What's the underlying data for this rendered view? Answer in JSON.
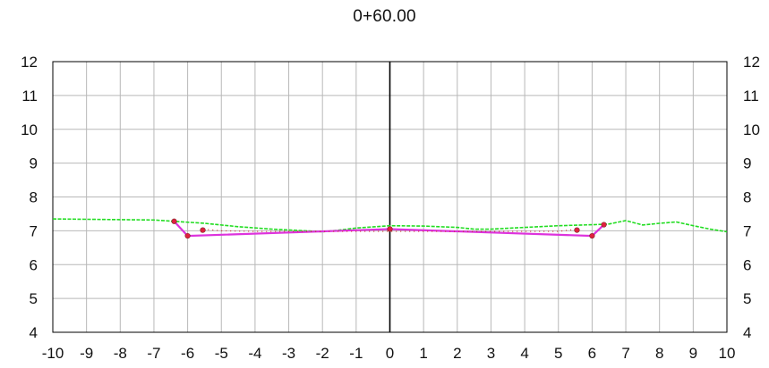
{
  "chart_data": {
    "type": "line",
    "title": "0+60.00",
    "xlabel": "",
    "ylabel": "",
    "xlim": [
      -10,
      10
    ],
    "ylim": [
      4,
      12
    ],
    "x_ticks": [
      -10,
      -9,
      -8,
      -7,
      -6,
      -5,
      -4,
      -3,
      -2,
      -1,
      0,
      1,
      2,
      3,
      4,
      5,
      6,
      7,
      8,
      9,
      10
    ],
    "y_ticks": [
      4,
      5,
      6,
      7,
      8,
      9,
      10,
      11,
      12
    ],
    "grid": true,
    "center_line_x": 0,
    "series": [
      {
        "style": "dashed",
        "color": "#22dd22",
        "points": [
          [
            -10,
            7.35
          ],
          [
            -9,
            7.34
          ],
          [
            -8,
            7.33
          ],
          [
            -7,
            7.32
          ],
          [
            -6.4,
            7.28
          ],
          [
            -5.5,
            7.22
          ],
          [
            -4.5,
            7.12
          ],
          [
            -3.5,
            7.05
          ],
          [
            -2.5,
            7.0
          ],
          [
            -2,
            6.97
          ],
          [
            -1.5,
            7.02
          ],
          [
            -1,
            7.08
          ],
          [
            0,
            7.15
          ],
          [
            1,
            7.14
          ],
          [
            2,
            7.1
          ],
          [
            2.5,
            7.05
          ],
          [
            3,
            7.05
          ],
          [
            4,
            7.1
          ],
          [
            5,
            7.15
          ],
          [
            6,
            7.18
          ],
          [
            6.5,
            7.2
          ],
          [
            7,
            7.3
          ],
          [
            7.5,
            7.17
          ],
          [
            8,
            7.22
          ],
          [
            8.5,
            7.26
          ],
          [
            9,
            7.15
          ],
          [
            9.5,
            7.05
          ],
          [
            10,
            6.97
          ]
        ]
      },
      {
        "style": "solid",
        "color": "#dd33dd",
        "points": [
          [
            -6.4,
            7.28
          ],
          [
            -6,
            6.85
          ],
          [
            0,
            7.05
          ],
          [
            6,
            6.85
          ],
          [
            6.35,
            7.18
          ]
        ]
      },
      {
        "style": "dotted",
        "color": "#cc2222",
        "points": [
          [
            -5.6,
            6.95
          ],
          [
            -5.55,
            7.05
          ],
          [
            -5.0,
            7.0
          ],
          [
            -4.0,
            6.98
          ],
          [
            -3.0,
            6.98
          ],
          [
            -2.0,
            6.98
          ],
          [
            2.0,
            6.98
          ],
          [
            3.0,
            6.98
          ],
          [
            4.0,
            6.98
          ],
          [
            5.0,
            6.98
          ],
          [
            5.55,
            7.05
          ],
          [
            5.6,
            6.95
          ]
        ]
      }
    ],
    "markers": [
      [
        -6.4,
        7.28
      ],
      [
        -6,
        6.85
      ],
      [
        0,
        7.05
      ],
      [
        6,
        6.85
      ],
      [
        6.35,
        7.18
      ],
      [
        -5.55,
        7.02
      ],
      [
        5.55,
        7.02
      ]
    ]
  }
}
